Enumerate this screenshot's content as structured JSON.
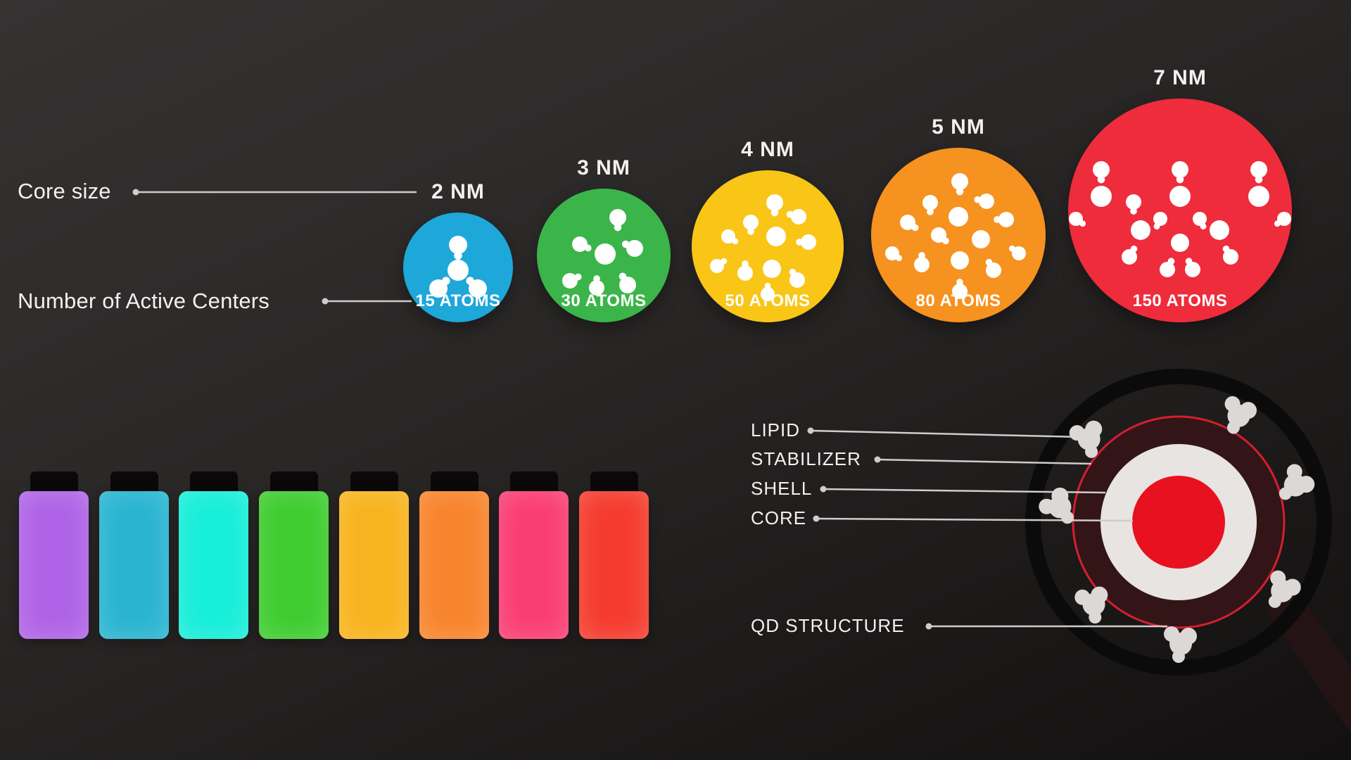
{
  "size_chart": {
    "left_labels": {
      "core_size": "Core size",
      "active_centers": "Number of Active Centers"
    },
    "dots": [
      {
        "size": "2 NM",
        "atoms": "15 ATOMS",
        "color": "#1ea7d9"
      },
      {
        "size": "3 NM",
        "atoms": "30 ATOMS",
        "color": "#3bb54a"
      },
      {
        "size": "4 NM",
        "atoms": "50 ATOMS",
        "color": "#f9c517"
      },
      {
        "size": "5 NM",
        "atoms": "80 ATOMS",
        "color": "#f6921f"
      },
      {
        "size": "7 NM",
        "atoms": "150 ATOMS",
        "color": "#ee2c3c"
      }
    ]
  },
  "vials": {
    "cap_color": "#0a0808",
    "colors": [
      "#af63e6",
      "#29b4d1",
      "#17eed9",
      "#3fcc30",
      "#f8b41e",
      "#f8842d",
      "#fa3d73",
      "#f53b2e"
    ]
  },
  "qd": {
    "labels": [
      "LIPID",
      "STABILIZER",
      "SHELL",
      "CORE"
    ],
    "structure_label": "QD STRUCTURE",
    "colors": {
      "rim": "#0c0b0b",
      "lipid_fill": "#331517",
      "lipid_stroke": "#d41f30",
      "shell": "#e7e4e1",
      "core": "#e8111f",
      "molecule": "#dbd8d6",
      "handle": "#231315",
      "line": "#cfcccb"
    }
  },
  "chart_data": {
    "type": "scatter",
    "title": "Quantum dot core size vs number of active centers",
    "x": [
      2,
      3,
      4,
      5,
      7
    ],
    "xlabel": "Core size (NM)",
    "y": [
      15,
      30,
      50,
      80,
      150
    ],
    "ylabel": "Number of Active Centers",
    "point_colors": [
      "#1ea7d9",
      "#3bb54a",
      "#f9c517",
      "#f6921f",
      "#ee2c3c"
    ],
    "emission_vial_colors": [
      "#af63e6",
      "#29b4d1",
      "#17eed9",
      "#3fcc30",
      "#f8b41e",
      "#f8842d",
      "#fa3d73",
      "#f53b2e"
    ]
  }
}
